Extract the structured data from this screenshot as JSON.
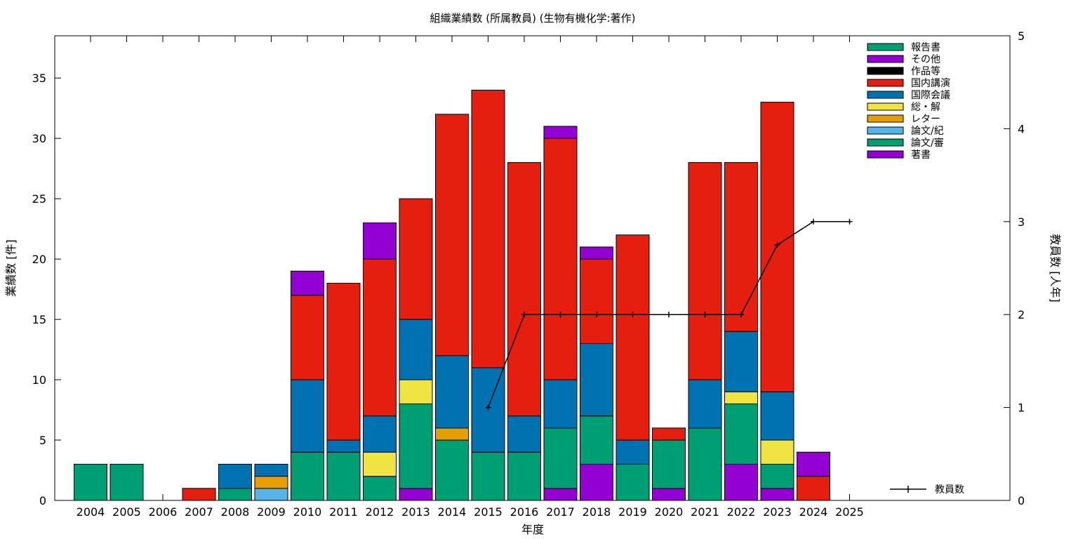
{
  "chart_data": {
    "type": "bar",
    "title": "組織業績数 (所属教員) (生物有機化学:著作)",
    "xlabel": "年度",
    "ylabel": "業績数 [件]",
    "y2label": "教員数 [人年]",
    "stacked": true,
    "ylim": [
      0,
      38.5
    ],
    "y2lim": [
      0,
      5
    ],
    "yticks": [
      "0",
      "5",
      "10",
      "15",
      "20",
      "25",
      "30",
      "35"
    ],
    "y2ticks": [
      "0",
      "1",
      "2",
      "3",
      "4",
      "5"
    ],
    "legend_position": "top-right",
    "categories": [
      "2004",
      "2005",
      "2006",
      "2007",
      "2008",
      "2009",
      "2010",
      "2011",
      "2012",
      "2013",
      "2014",
      "2015",
      "2016",
      "2017",
      "2018",
      "2019",
      "2020",
      "2021",
      "2022",
      "2023",
      "2024",
      "2025"
    ],
    "series": [
      {
        "name": "著書",
        "color": "#9400d3",
        "values": [
          0,
          0,
          0,
          0,
          0,
          0,
          0,
          0,
          0,
          1,
          0,
          0,
          0,
          1,
          3,
          0,
          1,
          0,
          3,
          1,
          0,
          0
        ]
      },
      {
        "name": "論文/審",
        "color": "#009e73",
        "values": [
          3,
          3,
          0,
          0,
          1,
          0,
          4,
          4,
          2,
          7,
          5,
          4,
          4,
          5,
          4,
          3,
          4,
          6,
          5,
          2,
          0,
          0
        ]
      },
      {
        "name": "論文/紀",
        "color": "#56b4e9",
        "values": [
          0,
          0,
          0,
          0,
          0,
          1,
          0,
          0,
          0,
          0,
          0,
          0,
          0,
          0,
          0,
          0,
          0,
          0,
          0,
          0,
          0,
          0
        ]
      },
      {
        "name": "レター",
        "color": "#e69f00",
        "values": [
          0,
          0,
          0,
          0,
          0,
          1,
          0,
          0,
          0,
          0,
          1,
          0,
          0,
          0,
          0,
          0,
          0,
          0,
          0,
          0,
          0,
          0
        ]
      },
      {
        "name": "総・解",
        "color": "#f0e442",
        "values": [
          0,
          0,
          0,
          0,
          0,
          0,
          0,
          0,
          2,
          2,
          0,
          0,
          0,
          0,
          0,
          0,
          0,
          0,
          1,
          2,
          0,
          0
        ]
      },
      {
        "name": "国際会議",
        "color": "#0072b2",
        "values": [
          0,
          0,
          0,
          0,
          2,
          1,
          6,
          1,
          3,
          5,
          6,
          7,
          3,
          4,
          6,
          2,
          0,
          4,
          5,
          4,
          0,
          0
        ]
      },
      {
        "name": "国内講演",
        "color": "#e51e10",
        "values": [
          0,
          0,
          0,
          1,
          0,
          0,
          7,
          13,
          13,
          10,
          20,
          23,
          21,
          20,
          7,
          17,
          1,
          18,
          14,
          24,
          2,
          0
        ]
      },
      {
        "name": "作品等",
        "color": "#000000",
        "values": [
          0,
          0,
          0,
          0,
          0,
          0,
          0,
          0,
          0,
          0,
          0,
          0,
          0,
          0,
          0,
          0,
          0,
          0,
          0,
          0,
          0,
          0
        ]
      },
      {
        "name": "その他",
        "color": "#9400d3",
        "values": [
          0,
          0,
          0,
          0,
          0,
          0,
          2,
          0,
          3,
          0,
          0,
          0,
          0,
          1,
          1,
          0,
          0,
          0,
          0,
          0,
          2,
          0
        ]
      },
      {
        "name": "報告書",
        "color": "#009e73",
        "values": [
          0,
          0,
          0,
          0,
          0,
          0,
          0,
          0,
          0,
          0,
          0,
          0,
          0,
          0,
          0,
          0,
          0,
          0,
          0,
          0,
          0,
          0
        ]
      }
    ],
    "line": {
      "name": "教員数",
      "color": "#000000",
      "axis": "y2",
      "x": [
        "2015",
        "2016",
        "2017",
        "2018",
        "2019",
        "2020",
        "2021",
        "2022",
        "2023",
        "2024",
        "2025"
      ],
      "values": [
        1,
        2,
        2,
        2,
        2,
        2,
        2,
        2,
        2.75,
        3,
        3
      ]
    }
  }
}
